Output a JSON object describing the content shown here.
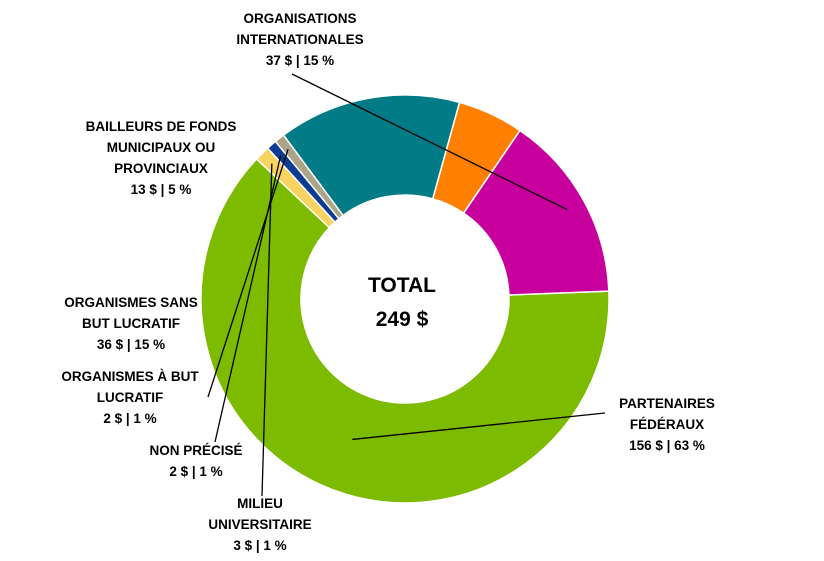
{
  "chart_data": {
    "type": "pie",
    "style": "donut",
    "legend": "none",
    "total": {
      "title": "TOTAL",
      "value": "249 $"
    },
    "slices": [
      {
        "lines": [
          "PARTENAIRES",
          "FÉDÉRAUX"
        ],
        "value_text": "156 $ | 63 %",
        "value": 156,
        "color": "#7DBB00"
      },
      {
        "lines": [
          "MILIEU",
          "UNIVERSITAIRE"
        ],
        "value_text": "3 $ | 1 %",
        "value": 3,
        "color": "#F7D460"
      },
      {
        "lines": [
          "NON PRÉCISÉ"
        ],
        "value_text": "2 $ | 1 %",
        "value": 2,
        "color": "#0D3D91"
      },
      {
        "lines": [
          "ORGANISMES À BUT",
          "LUCRATIF"
        ],
        "value_text": "2 $ | 1 %",
        "value": 2,
        "color": "#ABA488"
      },
      {
        "lines": [
          "ORGANISMES SANS",
          "BUT LUCRATIF"
        ],
        "value_text": "36 $ | 15 %",
        "value": 36,
        "color": "#017C87"
      },
      {
        "lines": [
          "BAILLEURS DE FONDS",
          "MUNICIPAUX OU",
          "PROVINCIAUX"
        ],
        "value_text": "13 $ | 5 %",
        "value": 13,
        "color": "#FF7F00"
      },
      {
        "lines": [
          "ORGANISATIONS",
          "INTERNATIONALES"
        ],
        "value_text": "37 $ | 15 %",
        "value": 37,
        "color": "#C7009D"
      }
    ]
  }
}
